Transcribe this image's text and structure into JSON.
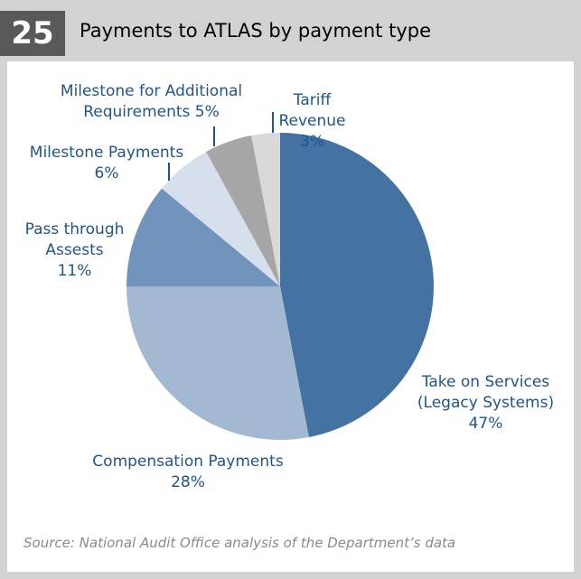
{
  "figure_number": "25",
  "source": "Source: National Audit Office analysis of the Department’s data",
  "chart_data": {
    "type": "pie",
    "title": "Payments to ATLAS by payment type",
    "categories": [
      "Take on Services (Legacy Systems)",
      "Compensation Payments",
      "Pass through Assests",
      "Milestone Payments",
      "Milestone for Additional Requirements",
      "Tariff Revenue"
    ],
    "values": [
      47,
      28,
      11,
      6,
      5,
      3
    ],
    "value_labels": [
      "47%",
      "28%",
      "11%",
      "6%",
      "5%",
      "3%"
    ],
    "colors": [
      "#4472a2",
      "#a3b8d1",
      "#7194bd",
      "#d6e0ec",
      "#a6a6a6",
      "#d9d9d9"
    ]
  }
}
